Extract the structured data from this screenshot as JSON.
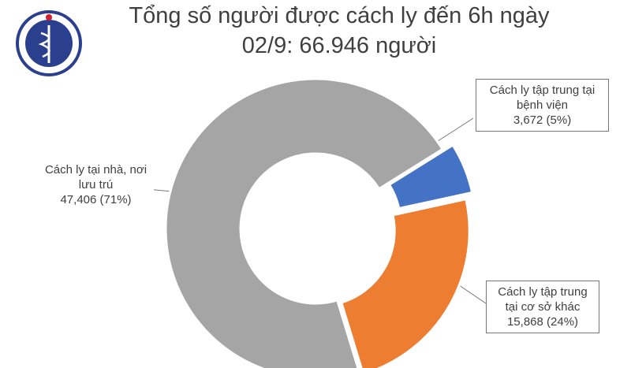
{
  "chart_data": {
    "type": "donut",
    "title": [
      "Tổng số người được cách ly đến 6h ngày",
      "02/9: 66.946 người"
    ],
    "categories": [
      "Cách ly tập trung tại bệnh viện",
      "Cách ly tập trung tại cơ sở khác",
      "Cách ly tại nhà, nơi lưu trú"
    ],
    "values": [
      3672,
      15868,
      47406
    ],
    "value_labels": [
      "3,672 (5%)",
      "15,868 (24%)",
      "47,406 (71%)"
    ],
    "colors": [
      "#4472c4",
      "#ed7d31",
      "#a5a5a5"
    ]
  }
}
